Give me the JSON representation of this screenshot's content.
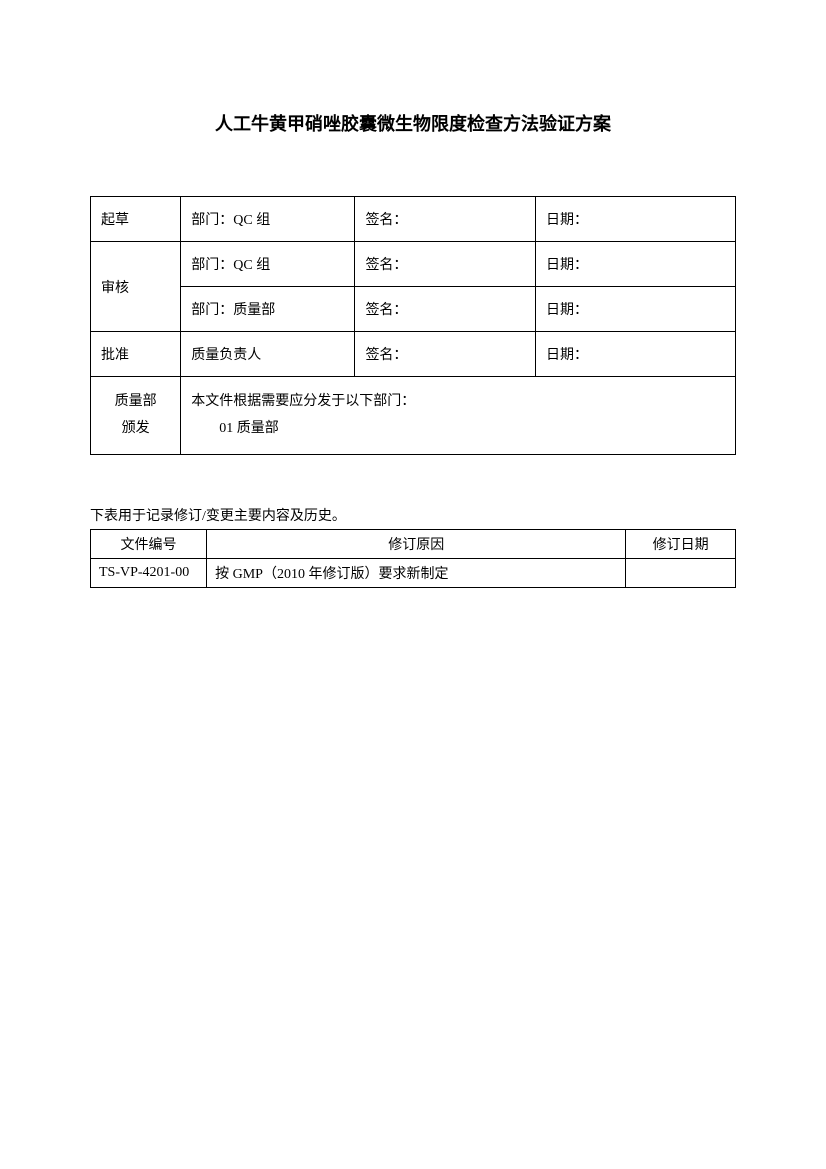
{
  "title": "人工牛黄甲硝唑胶囊微生物限度检查方法验证方案",
  "approval": {
    "draft": {
      "label": "起草",
      "dept": "部门：QC 组",
      "sign": "签名：",
      "date": "日期："
    },
    "review": {
      "label": "审核",
      "row1_dept": "部门：QC 组",
      "row1_sign": "签名：",
      "row1_date": "日期：",
      "row2_dept": "部门：质量部",
      "row2_sign": "签名：",
      "row2_date": "日期："
    },
    "approve": {
      "label": "批准",
      "dept": "质量负责人",
      "sign": "签名：",
      "date": "日期："
    },
    "distribution": {
      "label_line1": "质量部",
      "label_line2": "颁发",
      "text_line1": "本文件根据需要应分发于以下部门：",
      "text_line2": "01 质量部"
    }
  },
  "subtitle": "下表用于记录修订/变更主要内容及历史。",
  "revision": {
    "header_col1": "文件编号",
    "header_col2": "修订原因",
    "header_col3": "修订日期",
    "row1_col1": "TS-VP-4201-00",
    "row1_col2": "按 GMP（2010 年修订版）要求新制定",
    "row1_col3": ""
  }
}
